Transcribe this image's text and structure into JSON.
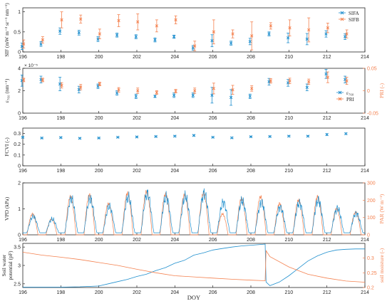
{
  "figure": {
    "xlabel": "DOY",
    "xticks": [
      196,
      198,
      200,
      202,
      204,
      206,
      208,
      210,
      212,
      214
    ],
    "xlim": [
      196,
      214
    ]
  },
  "colors": {
    "blue": "#1f8fce",
    "orange": "#f4814f"
  },
  "chart_data": [
    {
      "type": "scatter",
      "panel": "SIF",
      "ylabel": "SIF (mW m⁻² sr⁻¹ nm⁻¹)",
      "ylim": [
        0,
        1.1
      ],
      "yticks": [
        0,
        0.5,
        1
      ],
      "legend": {
        "placement": "top-right",
        "entries": [
          "SIFA",
          "SIFB"
        ]
      },
      "series": [
        {
          "name": "SIFA",
          "color": "#1f8fce",
          "axis": "left",
          "x": [
            196,
            197,
            198,
            199,
            200,
            201,
            202,
            203,
            204,
            205,
            206,
            207,
            208,
            209,
            210,
            211,
            212,
            213
          ],
          "y": [
            0.14,
            0.2,
            0.52,
            0.48,
            0.32,
            0.42,
            0.38,
            0.3,
            0.38,
            0.1,
            0.28,
            0.22,
            0.26,
            0.45,
            0.35,
            0.32,
            0.45,
            0.38
          ],
          "err": [
            0.08,
            0.06,
            0.08,
            0.06,
            0.06,
            0.05,
            0.05,
            0.05,
            0.04,
            0.06,
            0.15,
            0.05,
            0.08,
            0.05,
            0.12,
            0.14,
            0.08,
            0.07
          ]
        },
        {
          "name": "SIFB",
          "color": "#f4814f",
          "axis": "left",
          "x": [
            196,
            197,
            198,
            199,
            200,
            201,
            202,
            203,
            204,
            205,
            206,
            207,
            208,
            209,
            210,
            211,
            212,
            213
          ],
          "y": [
            0.2,
            0.3,
            0.8,
            0.82,
            0.45,
            0.78,
            0.75,
            0.65,
            0.8,
            0.15,
            0.5,
            0.45,
            0.4,
            0.65,
            0.6,
            0.55,
            0.6,
            0.45
          ],
          "err": [
            0.1,
            0.08,
            0.2,
            0.1,
            0.12,
            0.15,
            0.2,
            0.15,
            0.1,
            0.12,
            0.3,
            0.1,
            0.35,
            0.08,
            0.2,
            0.3,
            0.12,
            0.1
          ]
        }
      ]
    },
    {
      "type": "scatter",
      "panel": "epsilon-PRI",
      "ylabel": "ε₇₆₀ (nm⁻¹)",
      "ylabel_right": "PRI (-)",
      "yscale_note": "× 10⁻⁵",
      "ylim": [
        0,
        4
      ],
      "yticks": [
        0,
        2,
        4
      ],
      "ylim_right": [
        -0.05,
        0.05
      ],
      "yticks_right": [
        -0.05,
        0,
        0.05
      ],
      "legend": {
        "placement": "bottom-right",
        "entries": [
          "ε₇₆₀",
          "PRI"
        ]
      },
      "series": [
        {
          "name": "ε₇₆₀",
          "color": "#1f8fce",
          "axis": "left",
          "x": [
            196,
            197,
            198,
            199,
            200,
            201,
            202,
            203,
            204,
            205,
            206,
            207,
            208,
            209,
            210,
            211,
            212,
            213
          ],
          "y": [
            2.9,
            3.0,
            2.6,
            2.1,
            2.4,
            1.8,
            1.5,
            1.5,
            1.6,
            1.6,
            1.6,
            1.4,
            1.5,
            2.8,
            2.7,
            2.3,
            3.5,
            3.0
          ],
          "err": [
            0.5,
            0.3,
            0.6,
            0.3,
            0.2,
            0.2,
            0.2,
            0.1,
            0.2,
            0.2,
            0.7,
            0.7,
            0.2,
            0.3,
            0.3,
            0.3,
            0.4,
            0.3
          ]
        },
        {
          "name": "PRI",
          "color": "#f4814f",
          "axis": "right",
          "x": [
            196,
            197,
            198,
            199,
            200,
            201,
            202,
            203,
            204,
            205,
            206,
            207,
            208,
            209,
            210,
            211,
            212,
            213
          ],
          "y": [
            0.024,
            0.024,
            0.012,
            0.008,
            0.015,
            0.002,
            0.0,
            -0.004,
            -0.001,
            0.0,
            0.005,
            0.002,
            0.005,
            0.022,
            0.022,
            0.02,
            0.03,
            0.022
          ],
          "err": [
            0.004,
            0.004,
            0.006,
            0.006,
            0.004,
            0.005,
            0.006,
            0.004,
            0.004,
            0.006,
            0.012,
            0.01,
            0.006,
            0.005,
            0.006,
            0.006,
            0.012,
            0.008
          ]
        }
      ]
    },
    {
      "type": "scatter",
      "panel": "FCVI",
      "ylabel": "FCVI (-)",
      "ylim": [
        0,
        0.35
      ],
      "yticks": [
        0,
        0.1,
        0.2,
        0.3
      ],
      "series": [
        {
          "name": "",
          "color": "#1f8fce",
          "axis": "left",
          "x": [
            196,
            197,
            198,
            199,
            200,
            201,
            202,
            203,
            204,
            205,
            206,
            207,
            208,
            209,
            210,
            211,
            212,
            213
          ],
          "y": [
            0.265,
            0.258,
            0.262,
            0.255,
            0.258,
            0.265,
            0.268,
            0.272,
            0.275,
            0.282,
            0.265,
            0.26,
            0.27,
            0.272,
            0.275,
            0.275,
            0.29,
            0.298
          ],
          "err": [
            0.006,
            0.005,
            0.005,
            0.005,
            0.005,
            0.005,
            0.005,
            0.005,
            0.005,
            0.006,
            0.005,
            0.005,
            0.005,
            0.005,
            0.005,
            0.005,
            0.008,
            0.007
          ]
        }
      ]
    },
    {
      "type": "line",
      "panel": "VPD-PAR",
      "ylabel": "VPD (kPa)",
      "ylabel_right": "PAR (W m⁻²)",
      "ylim": [
        0,
        2
      ],
      "yticks": [
        0,
        1,
        2
      ],
      "ylim_right": [
        0,
        300
      ],
      "yticks_right": [
        0,
        100,
        200,
        300
      ],
      "diurnal": {
        "days": [
          196,
          197,
          198,
          199,
          200,
          201,
          202,
          203,
          204,
          205,
          206,
          207,
          208,
          209,
          210,
          211,
          212,
          213
        ],
        "vpd_peak": [
          0.6,
          0.55,
          1.25,
          1.35,
          0.95,
          1.4,
          1.45,
          1.4,
          1.35,
          1.55,
          1.15,
          1.25,
          1.15,
          1.0,
          1.15,
          1.25,
          0.95,
          0.75
        ],
        "par_peak": [
          120,
          90,
          220,
          230,
          180,
          240,
          250,
          235,
          230,
          240,
          120,
          210,
          220,
          180,
          200,
          220,
          150,
          130
        ]
      },
      "series": [
        {
          "name": "VPD",
          "color": "#1f8fce",
          "axis": "left"
        },
        {
          "name": "PAR",
          "color": "#f4814f",
          "axis": "right"
        }
      ]
    },
    {
      "type": "line",
      "panel": "soil",
      "ylabel": "Soil water potential (pF)",
      "ylabel_right": "soil moisture (-)",
      "ylim": [
        2.4,
        3.6
      ],
      "yticks": [
        2.5,
        3,
        3.5
      ],
      "ylim_right": [
        0.2,
        0.35
      ],
      "yticks_right": [
        0.2,
        0.25,
        0.3
      ],
      "series": [
        {
          "name": "Soil water potential",
          "color": "#1f8fce",
          "axis": "left",
          "x": [
            196,
            197,
            198,
            199,
            200,
            200.5,
            201,
            201.5,
            202,
            202.5,
            203,
            203.5,
            204,
            204.5,
            205,
            205.5,
            206,
            206.5,
            207,
            207.5,
            208,
            208.5,
            208.75,
            208.8,
            209,
            209.5,
            210,
            210.5,
            211,
            211.5,
            212,
            212.5,
            213,
            213.5,
            214
          ],
          "y": [
            2.41,
            2.41,
            2.41,
            2.42,
            2.44,
            2.5,
            2.56,
            2.62,
            2.7,
            2.76,
            2.86,
            2.94,
            3.06,
            3.14,
            3.28,
            3.34,
            3.42,
            3.46,
            3.5,
            3.53,
            3.55,
            3.57,
            3.58,
            2.55,
            2.45,
            2.55,
            2.72,
            2.92,
            3.12,
            3.26,
            3.36,
            3.42,
            3.44,
            3.45,
            3.45
          ]
        },
        {
          "name": "soil moisture",
          "color": "#f4814f",
          "axis": "right",
          "x": [
            196,
            197,
            198,
            199,
            200,
            201,
            202,
            203,
            204,
            205,
            206,
            207,
            208,
            208.75,
            208.8,
            209,
            210,
            211,
            212,
            213,
            214
          ],
          "y": [
            0.32,
            0.31,
            0.303,
            0.295,
            0.285,
            0.275,
            0.262,
            0.25,
            0.24,
            0.236,
            0.232,
            0.228,
            0.225,
            0.223,
            0.325,
            0.305,
            0.27,
            0.245,
            0.232,
            0.222,
            0.218
          ]
        }
      ]
    }
  ]
}
